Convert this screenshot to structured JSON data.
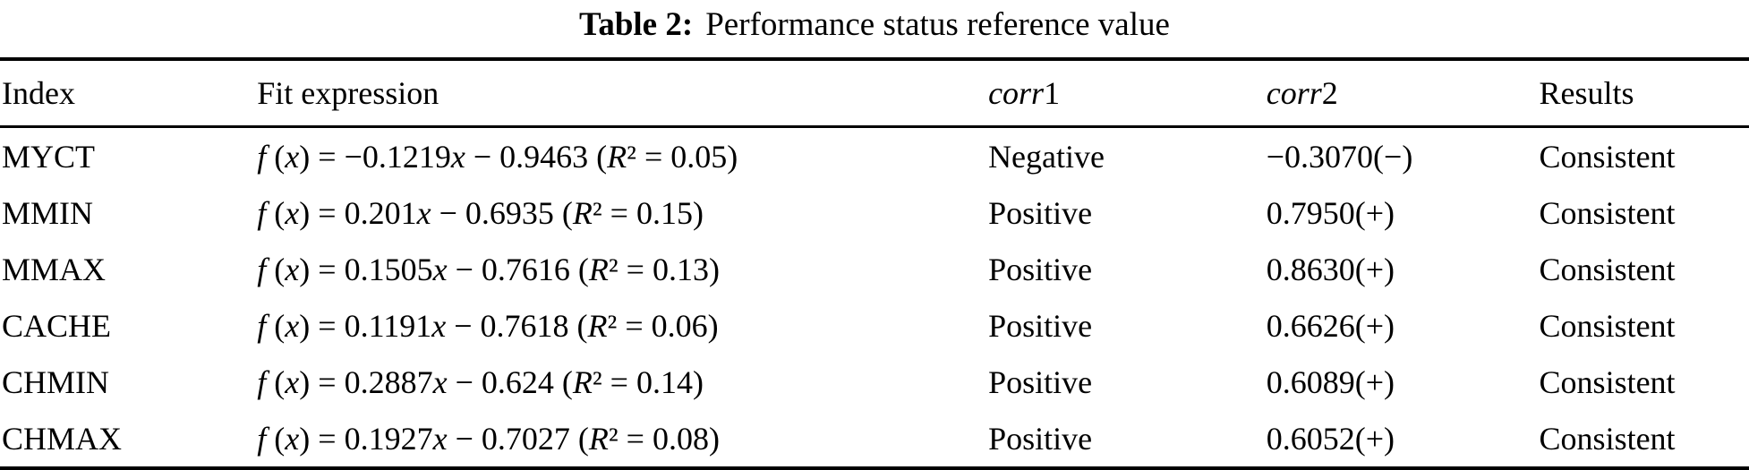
{
  "caption": {
    "label": "Table 2:",
    "text": "Performance status reference value"
  },
  "table": {
    "headers": {
      "index": "Index",
      "fit": "Fit expression",
      "corr1": "corr1",
      "corr2": "corr2",
      "results": "Results"
    },
    "rows": [
      {
        "index": "MYCT",
        "fit": "f (x) = −0.1219x − 0.9463 (R² = 0.05)",
        "corr1": "Negative",
        "corr2": "−0.3070(−)",
        "results": "Consistent"
      },
      {
        "index": "MMIN",
        "fit": "f (x) = 0.201x − 0.6935 (R² = 0.15)",
        "corr1": "Positive",
        "corr2": "0.7950(+)",
        "results": "Consistent"
      },
      {
        "index": "MMAX",
        "fit": "f (x) = 0.1505x − 0.7616 (R² = 0.13)",
        "corr1": "Positive",
        "corr2": "0.8630(+)",
        "results": "Consistent"
      },
      {
        "index": "CACHE",
        "fit": "f (x) = 0.1191x − 0.7618 (R² = 0.06)",
        "corr1": "Positive",
        "corr2": "0.6626(+)",
        "results": "Consistent"
      },
      {
        "index": "CHMIN",
        "fit": "f (x) = 0.2887x − 0.624 (R² = 0.14)",
        "corr1": "Positive",
        "corr2": "0.6089(+)",
        "results": "Consistent"
      },
      {
        "index": "CHMAX",
        "fit": "f (x) = 0.1927x − 0.7027 (R² = 0.08)",
        "corr1": "Positive",
        "corr2": "0.6052(+)",
        "results": "Consistent"
      }
    ]
  }
}
